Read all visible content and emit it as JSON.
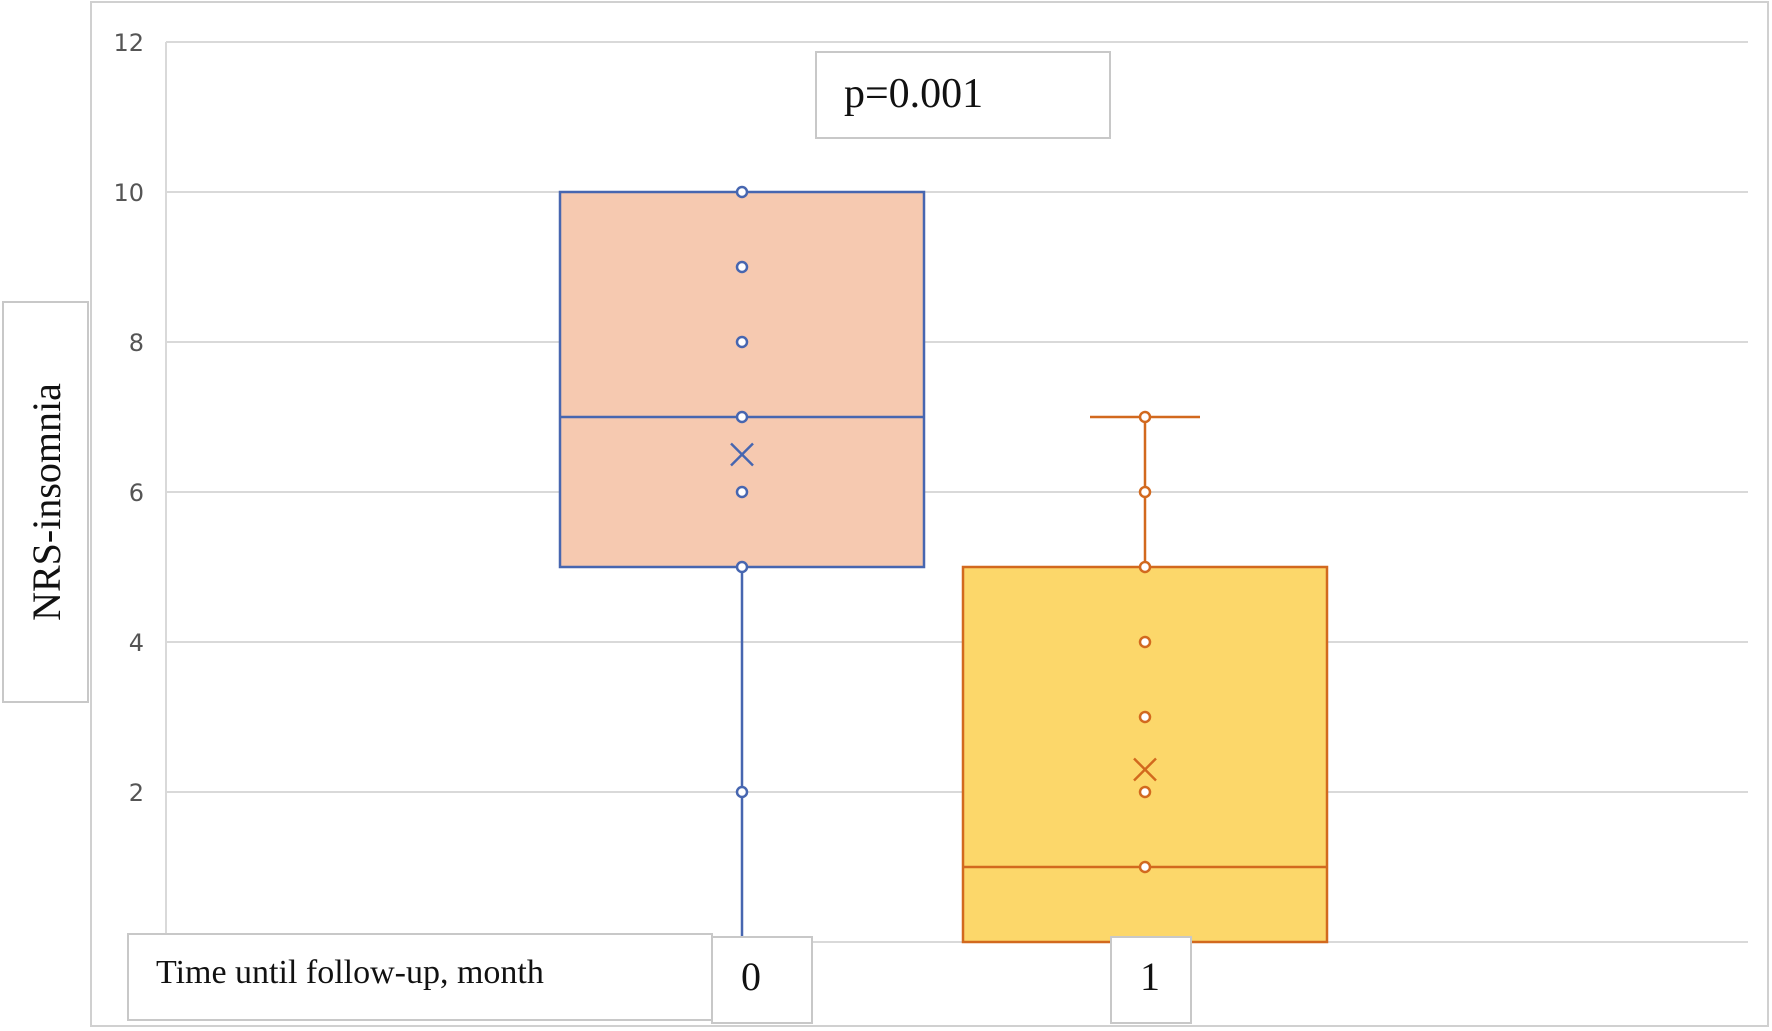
{
  "chart_data": {
    "type": "box",
    "title": "",
    "ylabel": "NRS-insomnia",
    "xlabel": "Time until follow-up, month",
    "ylim": [
      0,
      12
    ],
    "yticks": [
      2,
      4,
      6,
      8,
      10,
      12
    ],
    "grid": true,
    "annotation": "p=0.001",
    "categories": [
      "0",
      "1"
    ],
    "boxes": [
      {
        "category": "0",
        "whisker_low": 0,
        "q1": 5,
        "median": 7,
        "q3": 10,
        "whisker_high": 10,
        "mean": 6.5,
        "points": [
          10,
          9,
          8,
          7,
          6,
          5,
          2
        ],
        "fill": "#F6C9B0",
        "stroke": "#4766B0"
      },
      {
        "category": "1",
        "whisker_low": 0,
        "q1": 0,
        "median": 1,
        "q3": 5,
        "whisker_high": 7,
        "mean": 2.3,
        "points": [
          7,
          6,
          5,
          4,
          3,
          2,
          1
        ],
        "fill": "#FCD76A",
        "stroke": "#D2691E"
      }
    ]
  }
}
